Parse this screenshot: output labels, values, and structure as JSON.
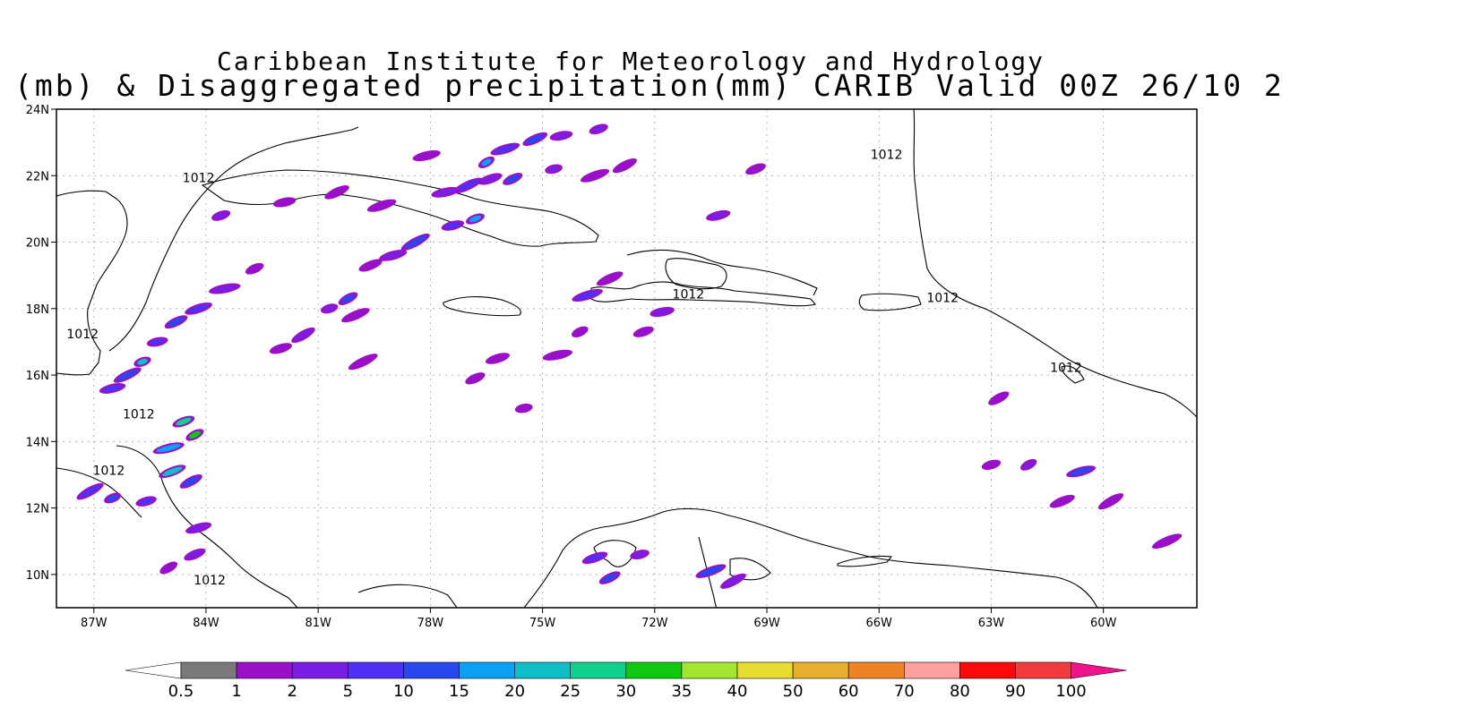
{
  "titles": {
    "line1": "Caribbean Institute for Meteorology and Hydrology",
    "line2": "(mb) & Disaggregated precipitation(mm) CARIB Valid 00Z 26/10 2"
  },
  "map": {
    "lon_range": [
      -88,
      -57.5
    ],
    "lat_range": [
      9,
      24
    ],
    "lat_ticks": [
      {
        "value": 24,
        "label": "24N"
      },
      {
        "value": 22,
        "label": "22N"
      },
      {
        "value": 20,
        "label": "20N"
      },
      {
        "value": 18,
        "label": "18N"
      },
      {
        "value": 16,
        "label": "16N"
      },
      {
        "value": 14,
        "label": "14N"
      },
      {
        "value": 12,
        "label": "12N"
      },
      {
        "value": 10,
        "label": "10N"
      }
    ],
    "lon_ticks": [
      {
        "value": -87,
        "label": "87W"
      },
      {
        "value": -84,
        "label": "84W"
      },
      {
        "value": -81,
        "label": "81W"
      },
      {
        "value": -78,
        "label": "78W"
      },
      {
        "value": -75,
        "label": "75W"
      },
      {
        "value": -72,
        "label": "72W"
      },
      {
        "value": -69,
        "label": "69W"
      },
      {
        "value": -66,
        "label": "66W"
      },
      {
        "value": -63,
        "label": "63W"
      },
      {
        "value": -60,
        "label": "60W"
      }
    ],
    "grid": true,
    "isobar_labels": [
      {
        "text": "1012",
        "lon": -84.2,
        "lat": 21.8
      },
      {
        "text": "1012",
        "lon": -87.3,
        "lat": 17.1
      },
      {
        "text": "1012",
        "lon": -85.8,
        "lat": 14.7
      },
      {
        "text": "1012",
        "lon": -86.6,
        "lat": 13.0
      },
      {
        "text": "1012",
        "lon": -83.9,
        "lat": 9.7
      },
      {
        "text": "1012",
        "lon": -71.1,
        "lat": 18.3
      },
      {
        "text": "1012",
        "lon": -64.3,
        "lat": 18.2
      },
      {
        "text": "1012",
        "lon": -65.8,
        "lat": 22.5
      },
      {
        "text": "1012",
        "lon": -61.0,
        "lat": 16.1
      }
    ]
  },
  "colorbar": {
    "labels": [
      "0.5",
      "1",
      "2",
      "5",
      "10",
      "15",
      "20",
      "25",
      "30",
      "35",
      "40",
      "50",
      "60",
      "70",
      "80",
      "90",
      "100"
    ],
    "colors": [
      "#ffffff",
      "#7a7a7a",
      "#9a10c8",
      "#7a1ee6",
      "#5030f4",
      "#2848ee",
      "#0aa0f4",
      "#10bec8",
      "#10ce8c",
      "#10c810",
      "#a0e632",
      "#e6dc32",
      "#e6af2e",
      "#f08228",
      "#ffa0a0",
      "#fa0a0a",
      "#f03c3c",
      "#f0148c"
    ]
  },
  "precip_cells": [
    {
      "lon": -76.5,
      "lat": 22.4,
      "lvl": 6
    },
    {
      "lon": -76.0,
      "lat": 22.8,
      "lvl": 4
    },
    {
      "lon": -75.2,
      "lat": 23.1,
      "lvl": 5
    },
    {
      "lon": -74.5,
      "lat": 23.2,
      "lvl": 3
    },
    {
      "lon": -73.5,
      "lat": 23.4,
      "lvl": 3
    },
    {
      "lon": -77.0,
      "lat": 21.7,
      "lvl": 4
    },
    {
      "lon": -77.6,
      "lat": 21.5,
      "lvl": 3
    },
    {
      "lon": -76.4,
      "lat": 21.9,
      "lvl": 3
    },
    {
      "lon": -75.8,
      "lat": 21.9,
      "lvl": 5
    },
    {
      "lon": -74.7,
      "lat": 22.2,
      "lvl": 3
    },
    {
      "lon": -73.6,
      "lat": 22.0,
      "lvl": 2
    },
    {
      "lon": -72.8,
      "lat": 22.3,
      "lvl": 2
    },
    {
      "lon": -77.4,
      "lat": 20.5,
      "lvl": 4
    },
    {
      "lon": -76.8,
      "lat": 20.7,
      "lvl": 6
    },
    {
      "lon": -78.4,
      "lat": 20.0,
      "lvl": 5
    },
    {
      "lon": -79.0,
      "lat": 19.6,
      "lvl": 3
    },
    {
      "lon": -79.6,
      "lat": 19.3,
      "lvl": 2
    },
    {
      "lon": -80.2,
      "lat": 18.3,
      "lvl": 5
    },
    {
      "lon": -80.7,
      "lat": 18.0,
      "lvl": 3
    },
    {
      "lon": -80.0,
      "lat": 17.8,
      "lvl": 2
    },
    {
      "lon": -81.4,
      "lat": 17.2,
      "lvl": 3
    },
    {
      "lon": -82.0,
      "lat": 16.8,
      "lvl": 2
    },
    {
      "lon": -82.7,
      "lat": 19.2,
      "lvl": 2
    },
    {
      "lon": -83.5,
      "lat": 18.6,
      "lvl": 3
    },
    {
      "lon": -84.2,
      "lat": 18.0,
      "lvl": 4
    },
    {
      "lon": -84.8,
      "lat": 17.6,
      "lvl": 5
    },
    {
      "lon": -85.3,
      "lat": 17.0,
      "lvl": 4
    },
    {
      "lon": -85.7,
      "lat": 16.4,
      "lvl": 7
    },
    {
      "lon": -86.1,
      "lat": 16.0,
      "lvl": 5
    },
    {
      "lon": -86.5,
      "lat": 15.6,
      "lvl": 4
    },
    {
      "lon": -84.6,
      "lat": 14.6,
      "lvl": 8
    },
    {
      "lon": -84.3,
      "lat": 14.2,
      "lvl": 9
    },
    {
      "lon": -85.0,
      "lat": 13.8,
      "lvl": 6
    },
    {
      "lon": -84.9,
      "lat": 13.1,
      "lvl": 7
    },
    {
      "lon": -84.4,
      "lat": 12.8,
      "lvl": 5
    },
    {
      "lon": -85.6,
      "lat": 12.2,
      "lvl": 4
    },
    {
      "lon": -86.5,
      "lat": 12.3,
      "lvl": 5
    },
    {
      "lon": -87.1,
      "lat": 12.5,
      "lvl": 4
    },
    {
      "lon": -84.2,
      "lat": 11.4,
      "lvl": 3
    },
    {
      "lon": -84.3,
      "lat": 10.6,
      "lvl": 3
    },
    {
      "lon": -85.0,
      "lat": 10.2,
      "lvl": 2
    },
    {
      "lon": -73.8,
      "lat": 18.4,
      "lvl": 4
    },
    {
      "lon": -73.2,
      "lat": 18.9,
      "lvl": 2
    },
    {
      "lon": -71.8,
      "lat": 17.9,
      "lvl": 3
    },
    {
      "lon": -72.3,
      "lat": 17.3,
      "lvl": 2
    },
    {
      "lon": -74.0,
      "lat": 17.3,
      "lvl": 2
    },
    {
      "lon": -74.6,
      "lat": 16.6,
      "lvl": 2
    },
    {
      "lon": -73.6,
      "lat": 10.5,
      "lvl": 4
    },
    {
      "lon": -73.2,
      "lat": 9.9,
      "lvl": 5
    },
    {
      "lon": -72.4,
      "lat": 10.6,
      "lvl": 3
    },
    {
      "lon": -70.5,
      "lat": 10.1,
      "lvl": 5
    },
    {
      "lon": -69.9,
      "lat": 9.8,
      "lvl": 3
    },
    {
      "lon": -70.3,
      "lat": 20.8,
      "lvl": 3
    },
    {
      "lon": -69.3,
      "lat": 22.2,
      "lvl": 2
    },
    {
      "lon": -62.0,
      "lat": 13.3,
      "lvl": 3
    },
    {
      "lon": -60.6,
      "lat": 13.1,
      "lvl": 5
    },
    {
      "lon": -61.1,
      "lat": 12.2,
      "lvl": 2
    },
    {
      "lon": -62.8,
      "lat": 15.3,
      "lvl": 2
    },
    {
      "lon": -63.0,
      "lat": 13.3,
      "lvl": 2
    },
    {
      "lon": -58.3,
      "lat": 11.0,
      "lvl": 2
    },
    {
      "lon": -59.8,
      "lat": 12.2,
      "lvl": 2
    },
    {
      "lon": -76.2,
      "lat": 16.5,
      "lvl": 2
    },
    {
      "lon": -76.8,
      "lat": 15.9,
      "lvl": 2
    },
    {
      "lon": -75.5,
      "lat": 15.0,
      "lvl": 2
    },
    {
      "lon": -79.3,
      "lat": 21.1,
      "lvl": 2
    },
    {
      "lon": -80.5,
      "lat": 21.5,
      "lvl": 2
    },
    {
      "lon": -81.9,
      "lat": 21.2,
      "lvl": 2
    },
    {
      "lon": -83.6,
      "lat": 20.8,
      "lvl": 3
    },
    {
      "lon": -79.8,
      "lat": 16.4,
      "lvl": 2
    },
    {
      "lon": -78.1,
      "lat": 22.6,
      "lvl": 2
    }
  ]
}
